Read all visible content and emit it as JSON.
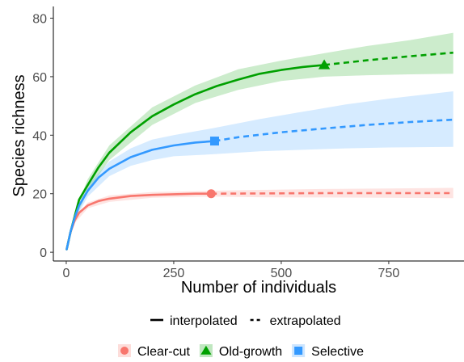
{
  "chart_data": {
    "type": "line",
    "xlabel": "Number of individuals",
    "ylabel": "Species richness",
    "xlim": [
      -30,
      925
    ],
    "ylim": [
      -3,
      84
    ],
    "x_ticks": [
      0,
      250,
      500,
      750
    ],
    "y_ticks": [
      0,
      20,
      40,
      60,
      80
    ],
    "grid": false,
    "linetype_legend": {
      "placement": "bottom",
      "items": [
        {
          "label": "interpolated",
          "style": "solid"
        },
        {
          "label": "extrapolated",
          "style": "dashed"
        }
      ]
    },
    "series_legend": {
      "placement": "bottom",
      "items": [
        "Clear-cut",
        "Old-growth",
        "Selective"
      ]
    },
    "series": [
      {
        "name": "Clear-cut",
        "color": "#f8766d",
        "marker": "circle",
        "observed": {
          "x": 337,
          "y": 20
        },
        "interpolated": [
          [
            1,
            1
          ],
          [
            10,
            7
          ],
          [
            20,
            11
          ],
          [
            30,
            13.5
          ],
          [
            50,
            16
          ],
          [
            75,
            17.5
          ],
          [
            100,
            18.3
          ],
          [
            150,
            19.2
          ],
          [
            200,
            19.6
          ],
          [
            250,
            19.8
          ],
          [
            300,
            20
          ],
          [
            337,
            20
          ]
        ],
        "extrapolated": [
          [
            337,
            20
          ],
          [
            450,
            20.1
          ],
          [
            600,
            20.2
          ],
          [
            750,
            20.2
          ],
          [
            900,
            20.2
          ]
        ],
        "ci_lower": [
          [
            1,
            1
          ],
          [
            20,
            10
          ],
          [
            50,
            15
          ],
          [
            100,
            17.2
          ],
          [
            200,
            18.6
          ],
          [
            337,
            19
          ],
          [
            450,
            18.8
          ],
          [
            600,
            18.7
          ],
          [
            750,
            18.6
          ],
          [
            900,
            18.5
          ]
        ],
        "ci_upper": [
          [
            1,
            1
          ],
          [
            20,
            12
          ],
          [
            50,
            17
          ],
          [
            100,
            19.4
          ],
          [
            200,
            20.6
          ],
          [
            337,
            21
          ],
          [
            450,
            21.3
          ],
          [
            600,
            21.6
          ],
          [
            750,
            21.8
          ],
          [
            900,
            22
          ]
        ]
      },
      {
        "name": "Old-growth",
        "color": "#00a000",
        "marker": "triangle",
        "observed": {
          "x": 600,
          "y": 64
        },
        "interpolated": [
          [
            1,
            1
          ],
          [
            10,
            7
          ],
          [
            20,
            12.5
          ],
          [
            30,
            18
          ],
          [
            50,
            23
          ],
          [
            75,
            29
          ],
          [
            100,
            34
          ],
          [
            150,
            41
          ],
          [
            200,
            46.5
          ],
          [
            250,
            50.5
          ],
          [
            300,
            54
          ],
          [
            350,
            56.8
          ],
          [
            400,
            59
          ],
          [
            450,
            61
          ],
          [
            500,
            62.3
          ],
          [
            550,
            63.3
          ],
          [
            600,
            64
          ]
        ],
        "extrapolated": [
          [
            600,
            64
          ],
          [
            650,
            64.8
          ],
          [
            700,
            65.6
          ],
          [
            750,
            66.3
          ],
          [
            800,
            67
          ],
          [
            850,
            67.6
          ],
          [
            900,
            68.2
          ]
        ],
        "ci_lower": [
          [
            1,
            1
          ],
          [
            20,
            11
          ],
          [
            50,
            21
          ],
          [
            100,
            31.5
          ],
          [
            200,
            43.5
          ],
          [
            300,
            51
          ],
          [
            400,
            55.5
          ],
          [
            500,
            58.5
          ],
          [
            600,
            60
          ],
          [
            700,
            60.5
          ],
          [
            800,
            60.8
          ],
          [
            900,
            61
          ]
        ],
        "ci_upper": [
          [
            1,
            1
          ],
          [
            20,
            14
          ],
          [
            50,
            25
          ],
          [
            100,
            36.5
          ],
          [
            200,
            49.5
          ],
          [
            300,
            57
          ],
          [
            400,
            62.5
          ],
          [
            500,
            65.5
          ],
          [
            600,
            68
          ],
          [
            700,
            70.5
          ],
          [
            800,
            72.5
          ],
          [
            900,
            75
          ]
        ]
      },
      {
        "name": "Selective",
        "color": "#3399ff",
        "marker": "square",
        "observed": {
          "x": 345,
          "y": 38
        },
        "interpolated": [
          [
            1,
            1
          ],
          [
            10,
            7
          ],
          [
            20,
            12
          ],
          [
            30,
            16
          ],
          [
            50,
            21
          ],
          [
            75,
            25.5
          ],
          [
            100,
            28.5
          ],
          [
            150,
            32.5
          ],
          [
            200,
            35
          ],
          [
            250,
            36.5
          ],
          [
            300,
            37.5
          ],
          [
            345,
            38
          ]
        ],
        "extrapolated": [
          [
            345,
            38
          ],
          [
            400,
            39.3
          ],
          [
            500,
            41
          ],
          [
            600,
            42.3
          ],
          [
            700,
            43.5
          ],
          [
            800,
            44.5
          ],
          [
            900,
            45.3
          ]
        ],
        "ci_lower": [
          [
            1,
            1
          ],
          [
            20,
            11
          ],
          [
            50,
            19
          ],
          [
            100,
            26
          ],
          [
            150,
            29.5
          ],
          [
            200,
            31.5
          ],
          [
            250,
            32.8
          ],
          [
            345,
            33.5
          ],
          [
            450,
            34.5
          ],
          [
            550,
            35
          ],
          [
            650,
            35.5
          ],
          [
            750,
            35.8
          ],
          [
            900,
            36
          ]
        ],
        "ci_upper": [
          [
            1,
            1
          ],
          [
            20,
            13
          ],
          [
            50,
            23
          ],
          [
            100,
            31
          ],
          [
            150,
            35.5
          ],
          [
            200,
            38.5
          ],
          [
            250,
            40
          ],
          [
            345,
            42.5
          ],
          [
            450,
            45.5
          ],
          [
            550,
            48
          ],
          [
            650,
            50.5
          ],
          [
            750,
            52.5
          ],
          [
            900,
            55
          ]
        ]
      }
    ]
  }
}
